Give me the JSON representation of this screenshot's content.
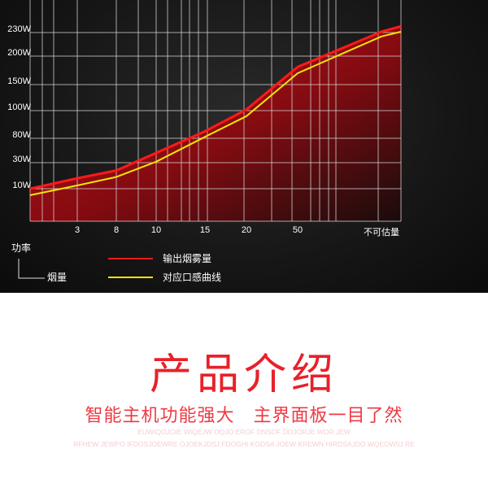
{
  "chart_data": {
    "type": "area",
    "title": "",
    "ylabel": "功率",
    "xlabel": "烟量",
    "y_ticks": [
      "230W",
      "200W",
      "150W",
      "100W",
      "80W",
      "30W",
      "10W"
    ],
    "x_ticks": [
      "3",
      "8",
      "10",
      "15",
      "20",
      "50",
      "不可估量"
    ],
    "x": [
      "",
      "3",
      "8",
      "10",
      "15",
      "20",
      "50",
      "不可估量",
      ""
    ],
    "series": [
      {
        "name": "输出烟雾量",
        "color": "#ff1a1a",
        "values": [
          10,
          18,
          24,
          50,
          85,
          102,
          181,
          231,
          238
        ],
        "filled": true
      },
      {
        "name": "对应口感曲线",
        "color": "#f5e400",
        "values": [
          8,
          12.5,
          19,
          32,
          81,
          96,
          170,
          225,
          231
        ]
      }
    ],
    "grid": true,
    "legend": "bottom-left"
  },
  "product": {
    "title": "产品介绍",
    "subtitle": "智能主机功能强大　主界面板一目了然",
    "faint_line_1": "EUWIQOJOIE WIQEJW   OQJO EROF DNSOF DOJORJE  WOR  JEW",
    "faint_line_2": "RFHEW JEWPO IFDOSJOEWRE  OJOEKJDSJ  FDOGHI  KGDSA JOEW  KREWN  HIRDSAJDO WQEOW0J RE"
  }
}
